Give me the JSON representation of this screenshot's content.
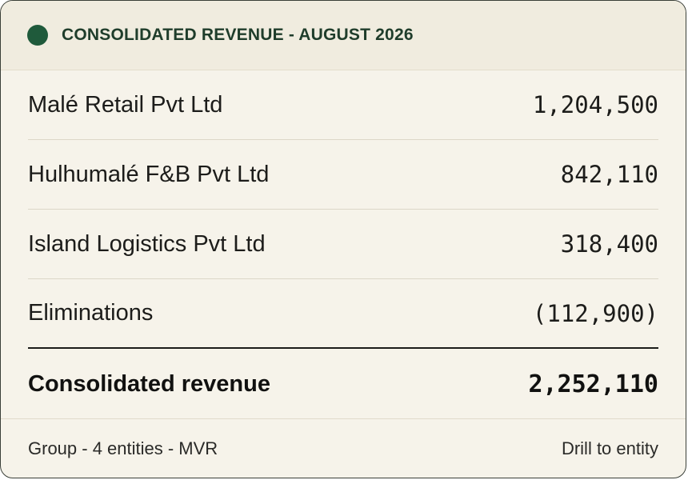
{
  "header": {
    "title": "CONSOLIDATED REVENUE - AUGUST 2026",
    "status_dot_color": "#1f5a3b"
  },
  "rows": [
    {
      "entity": "Malé Retail Pvt Ltd",
      "amount": "1,204,500"
    },
    {
      "entity": "Hulhumalé F&B Pvt Ltd",
      "amount": "842,110"
    },
    {
      "entity": "Island Logistics Pvt Ltd",
      "amount": "318,400"
    },
    {
      "entity": "Eliminations",
      "amount": "(112,900)"
    }
  ],
  "total": {
    "label": "Consolidated revenue",
    "amount": "2,252,110"
  },
  "footer": {
    "meta": "Group - 4 entities - MVR",
    "drill_link": "Drill to entity"
  }
}
